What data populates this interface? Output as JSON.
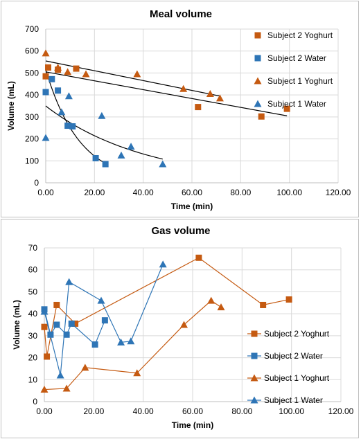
{
  "colors": {
    "orange": "#c55a11",
    "blue": "#2e75b6",
    "trend": "#000000",
    "grid": "#d9d9d9"
  },
  "chart_data": [
    {
      "type": "scatter",
      "title": "Meal volume",
      "xlabel": "Time (min)",
      "ylabel": "Volume (mL)",
      "xlim": [
        0,
        120
      ],
      "ylim": [
        0,
        700
      ],
      "xticks": [
        0,
        20,
        40,
        60,
        80,
        100,
        120
      ],
      "xtick_labels": [
        "0.00",
        "20.00",
        "40.00",
        "60.00",
        "80.00",
        "100.00",
        "120.00"
      ],
      "yticks": [
        0,
        100,
        200,
        300,
        400,
        500,
        600,
        700
      ],
      "ytick_labels": [
        "0",
        "100",
        "200",
        "300",
        "400",
        "500",
        "600",
        "700"
      ],
      "grid": true,
      "legend_position": "right",
      "series": [
        {
          "name": "Subject 2 Yoghurt",
          "marker": "square",
          "color": "#c55a11",
          "x": [
            0,
            1,
            5,
            12.5,
            62.5,
            88.5,
            99
          ],
          "y": [
            485,
            525,
            515,
            520,
            345,
            302,
            337
          ]
        },
        {
          "name": "Subject 2 Water",
          "marker": "square",
          "color": "#2e75b6",
          "x": [
            0,
            2.5,
            5,
            9,
            11,
            20.5,
            24.5
          ],
          "y": [
            413,
            472,
            420,
            260,
            257,
            112,
            85
          ]
        },
        {
          "name": "Subject 1 Yoghurt",
          "marker": "triangle",
          "color": "#c55a11",
          "x": [
            0,
            5,
            9,
            16.5,
            37.5,
            56.5,
            67.5,
            71.5
          ],
          "y": [
            590,
            525,
            505,
            495,
            495,
            428,
            405,
            385
          ]
        },
        {
          "name": "Subject 1 Water",
          "marker": "triangle",
          "color": "#2e75b6",
          "x": [
            0,
            6.5,
            9.5,
            23,
            31,
            35,
            48
          ],
          "y": [
            205,
            322,
            395,
            305,
            125,
            165,
            85
          ]
        }
      ],
      "trendlines": [
        {
          "x": [
            0,
            99
          ],
          "y": [
            505,
            305
          ]
        },
        {
          "x": [
            0,
            71.5
          ],
          "y": [
            555,
            395
          ]
        },
        {
          "x": [
            0,
            25
          ],
          "y": [
            515,
            85
          ],
          "shape": "exponential"
        },
        {
          "x": [
            0,
            48
          ],
          "y": [
            350,
            108
          ],
          "shape": "exponential"
        }
      ]
    },
    {
      "type": "line",
      "title": "Gas volume",
      "xlabel": "Time (min)",
      "ylabel": "Volume (mL)",
      "xlim": [
        0,
        120
      ],
      "ylim": [
        0,
        70
      ],
      "xticks": [
        0,
        20,
        40,
        60,
        80,
        100,
        120
      ],
      "xtick_labels": [
        "0.00",
        "20.00",
        "40.00",
        "60.00",
        "80.00",
        "100.00",
        "120.00"
      ],
      "yticks": [
        0,
        10,
        20,
        30,
        40,
        50,
        60,
        70
      ],
      "ytick_labels": [
        "0",
        "10",
        "20",
        "30",
        "40",
        "50",
        "60",
        "70"
      ],
      "grid": true,
      "legend_position": "right",
      "series": [
        {
          "name": "Subject 2 Yoghurt",
          "marker": "square",
          "color": "#c55a11",
          "x": [
            0,
            1,
            5,
            12.5,
            62.5,
            88.5,
            99
          ],
          "y": [
            34,
            20.5,
            44,
            35.5,
            65.5,
            44,
            46.5
          ]
        },
        {
          "name": "Subject 2 Water",
          "marker": "square",
          "color": "#2e75b6",
          "x": [
            0,
            2.5,
            5,
            9,
            11,
            20.5,
            24.5
          ],
          "y": [
            42,
            30.5,
            35,
            30.5,
            35.5,
            26,
            37
          ]
        },
        {
          "name": "Subject 1 Yoghurt",
          "marker": "triangle",
          "color": "#c55a11",
          "x": [
            0,
            9,
            16.5,
            37.5,
            56.5,
            67.5,
            71.5
          ],
          "y": [
            5.5,
            6,
            15.5,
            13,
            35,
            46,
            43
          ]
        },
        {
          "name": "Subject 1 Water",
          "marker": "triangle",
          "color": "#2e75b6",
          "x": [
            0,
            6.5,
            10,
            23,
            31,
            35,
            48
          ],
          "y": [
            41,
            12,
            54.5,
            46,
            27,
            27.5,
            62.5
          ]
        }
      ]
    }
  ]
}
